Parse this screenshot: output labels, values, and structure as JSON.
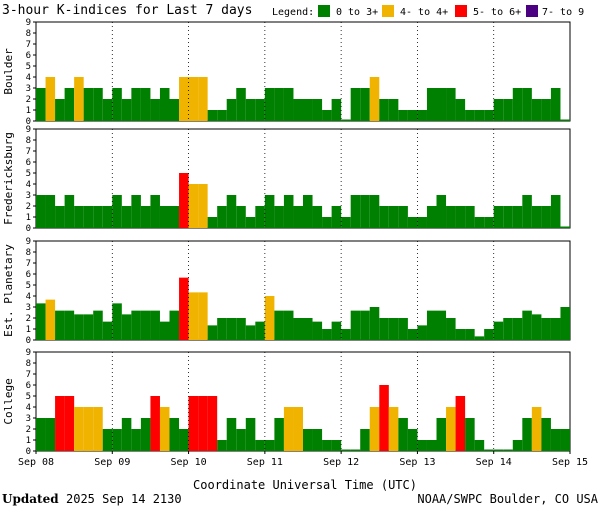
{
  "title": "3-hour K-indices for Last 7 days",
  "legend": {
    "label": "Legend:",
    "items": [
      {
        "label": "0 to 3+",
        "color": "#008000"
      },
      {
        "label": "4- to 4+",
        "color": "#f0b400"
      },
      {
        "label": "5- to 6+",
        "color": "#ff0000"
      },
      {
        "label": "7- to 9",
        "color": "#4b0082"
      }
    ]
  },
  "footer": {
    "updated_label": "Updated",
    "updated_value": "2025 Sep 14 2130",
    "source": "NOAA/SWPC Boulder, CO USA"
  },
  "chart_data": {
    "type": "bar",
    "xlabel": "Coordinate Universal Time (UTC)",
    "x_ticks": [
      "Sep 08",
      "Sep 09",
      "Sep 10",
      "Sep 11",
      "Sep 12",
      "Sep 13",
      "Sep 14",
      "Sep 15"
    ],
    "ylim": [
      0,
      9
    ],
    "y_ticks": [
      "0",
      "1",
      "2",
      "3",
      "4",
      "5",
      "6",
      "7",
      "8",
      "9"
    ],
    "grid": "dotted vertical at day boundaries",
    "panels": [
      {
        "name": "Boulder",
        "values": [
          3,
          4,
          2,
          3,
          4,
          3,
          3,
          2,
          3,
          2,
          3,
          3,
          2,
          3,
          2,
          4,
          4,
          4,
          1,
          1,
          2,
          3,
          2,
          2,
          3,
          3,
          3,
          2,
          2,
          2,
          1,
          2,
          0,
          3,
          3,
          4,
          2,
          2,
          1,
          1,
          1,
          3,
          3,
          3,
          2,
          1,
          1,
          1,
          2,
          2,
          3,
          3,
          2,
          2,
          3,
          0
        ]
      },
      {
        "name": "Fredericksburg",
        "values": [
          3,
          3,
          2,
          3,
          2,
          2,
          2,
          2,
          3,
          2,
          3,
          2,
          3,
          2,
          2,
          5,
          4,
          4,
          1,
          2,
          3,
          2,
          1,
          2,
          3,
          2,
          3,
          2,
          3,
          2,
          1,
          2,
          1,
          3,
          3,
          3,
          2,
          2,
          2,
          1,
          1,
          2,
          3,
          2,
          2,
          2,
          1,
          1,
          2,
          2,
          2,
          3,
          2,
          2,
          3,
          0
        ]
      },
      {
        "name": "Est. Planetary",
        "values": [
          3.33,
          3.67,
          2.67,
          2.67,
          2.33,
          2.33,
          2.67,
          1.67,
          3.33,
          2.33,
          2.67,
          2.67,
          2.67,
          1.67,
          2.67,
          5.67,
          4.33,
          4.33,
          1.33,
          2,
          2,
          2,
          1.33,
          1.67,
          4,
          2.67,
          2.67,
          2,
          2,
          1.67,
          1,
          1.67,
          1,
          2.67,
          2.67,
          3,
          2,
          2,
          2,
          1,
          1.33,
          2.67,
          2.67,
          2,
          1,
          1,
          0.33,
          1,
          1.67,
          2,
          2,
          2.67,
          2.33,
          2,
          2,
          3
        ]
      },
      {
        "name": "College",
        "values": [
          3,
          3,
          5,
          5,
          4,
          4,
          4,
          2,
          2,
          3,
          2,
          3,
          5,
          4,
          3,
          2,
          5,
          5,
          5,
          1,
          3,
          2,
          3,
          1,
          1,
          3,
          4,
          4,
          2,
          2,
          1,
          1,
          0,
          0,
          2,
          4,
          6,
          4,
          3,
          2,
          1,
          1,
          3,
          4,
          5,
          3,
          1,
          0,
          0,
          0,
          1,
          3,
          4,
          3,
          2,
          2
        ]
      }
    ]
  }
}
